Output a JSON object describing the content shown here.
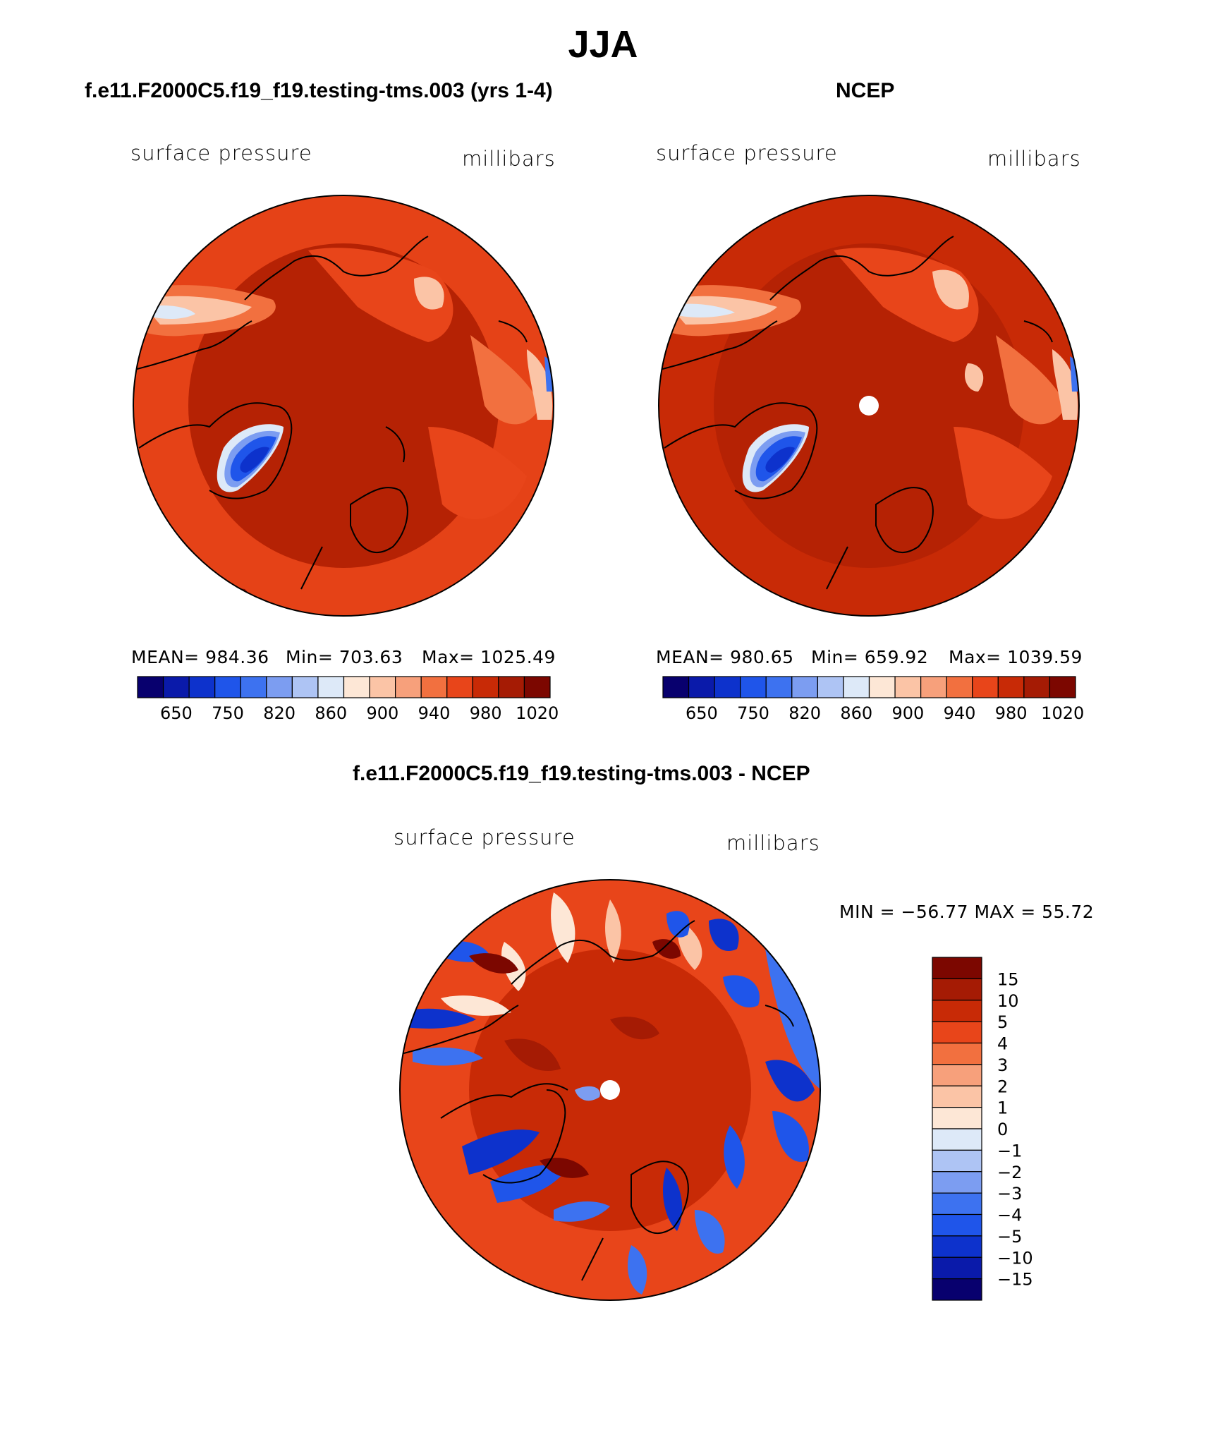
{
  "title": "JJA",
  "colors": {
    "seq_colorbar": [
      "#08006e",
      "#0a1aaa",
      "#0d32cc",
      "#1f55ea",
      "#3d72f0",
      "#7c9df1",
      "#aec4f4",
      "#dde9f8",
      "#fde7d6",
      "#fbc4a6",
      "#f7a07b",
      "#f2703f",
      "#e8451a",
      "#c82a06",
      "#a51b04",
      "#7c0700"
    ],
    "diff_colorbar": [
      "#7c0700",
      "#a51b04",
      "#c82a06",
      "#e8451a",
      "#f2703f",
      "#f7a07b",
      "#fbc4a6",
      "#fde7d6",
      "#dde9f8",
      "#aec4f4",
      "#7c9df1",
      "#3d72f0",
      "#1f55ea",
      "#0d32cc",
      "#0a1aaa",
      "#08006e"
    ]
  },
  "panel_left": {
    "case_title": "f.e11.F2000C5.f19_f19.testing-tms.003 (yrs 1-4)",
    "variable": "surface pressure",
    "units": "millibars",
    "stats": {
      "mean": "984.36",
      "min": "703.63",
      "max": "1025.49"
    },
    "mean_text": "MEAN= 984.36",
    "min_text": "Min= 703.63",
    "max_text": "Max= 1025.49",
    "colorbar_labels": [
      "650",
      "750",
      "820",
      "860",
      "900",
      "940",
      "980",
      "1020"
    ]
  },
  "panel_right": {
    "case_title": "NCEP",
    "variable": "surface pressure",
    "units": "millibars",
    "stats": {
      "mean": "980.65",
      "min": "659.92",
      "max": "1039.59"
    },
    "mean_text": "MEAN= 980.65",
    "min_text": "Min= 659.92",
    "max_text": "Max= 1039.59",
    "colorbar_labels": [
      "650",
      "750",
      "820",
      "860",
      "900",
      "940",
      "980",
      "1020"
    ]
  },
  "panel_diff": {
    "case_title": "f.e11.F2000C5.f19_f19.testing-tms.003 - NCEP",
    "variable": "surface pressure",
    "units": "millibars",
    "minmax_text": "MIN = −56.77 MAX =  55.72",
    "colorbar_labels": [
      "15",
      "10",
      "5",
      "4",
      "3",
      "2",
      "1",
      "0",
      "−1",
      "−2",
      "−3",
      "−4",
      "−5",
      "−10",
      "−15"
    ]
  }
}
